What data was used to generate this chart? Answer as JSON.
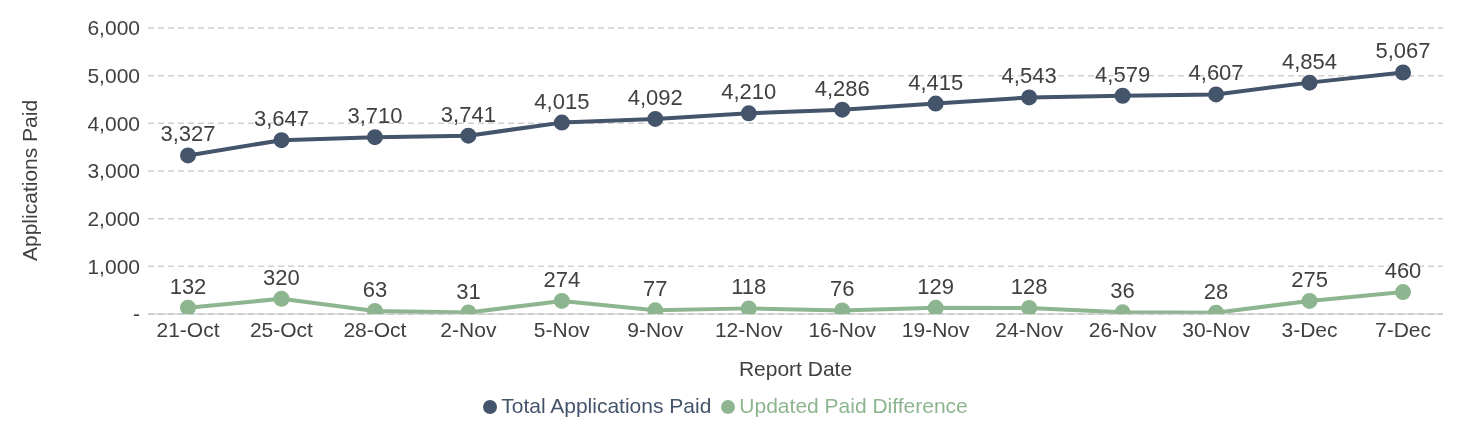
{
  "chart_data": {
    "type": "line",
    "xlabel": "Report Date",
    "ylabel": "Applications Paid",
    "categories": [
      "21-Oct",
      "25-Oct",
      "28-Oct",
      "2-Nov",
      "5-Nov",
      "9-Nov",
      "12-Nov",
      "16-Nov",
      "19-Nov",
      "24-Nov",
      "26-Nov",
      "30-Nov",
      "3-Dec",
      "7-Dec"
    ],
    "series": [
      {
        "name": "Total Applications Paid",
        "color": "#44546a",
        "values": [
          3327,
          3647,
          3710,
          3741,
          4015,
          4092,
          4210,
          4286,
          4415,
          4543,
          4579,
          4607,
          4854,
          5067
        ],
        "value_labels": [
          "3,327",
          "3,647",
          "3,710",
          "3,741",
          "4,015",
          "4,092",
          "4,210",
          "4,286",
          "4,415",
          "4,543",
          "4,579",
          "4,607",
          "4,854",
          "5,067"
        ]
      },
      {
        "name": "Updated Paid Difference",
        "color": "#8db58f",
        "values": [
          132,
          320,
          63,
          31,
          274,
          77,
          118,
          76,
          129,
          128,
          36,
          28,
          275,
          460
        ],
        "value_labels": [
          "132",
          "320",
          "63",
          "31",
          "274",
          "77",
          "118",
          "76",
          "129",
          "128",
          "36",
          "28",
          "275",
          "460"
        ]
      }
    ],
    "ylim": [
      0,
      6000
    ],
    "yticks": [
      {
        "value": 0,
        "label": "-"
      },
      {
        "value": 1000,
        "label": "1,000"
      },
      {
        "value": 2000,
        "label": "2,000"
      },
      {
        "value": 3000,
        "label": "3,000"
      },
      {
        "value": 4000,
        "label": "4,000"
      },
      {
        "value": 5000,
        "label": "5,000"
      },
      {
        "value": 6000,
        "label": "6,000"
      }
    ],
    "grid": "y",
    "legend": "bottom",
    "marker": "circle",
    "line_style": "solid"
  }
}
